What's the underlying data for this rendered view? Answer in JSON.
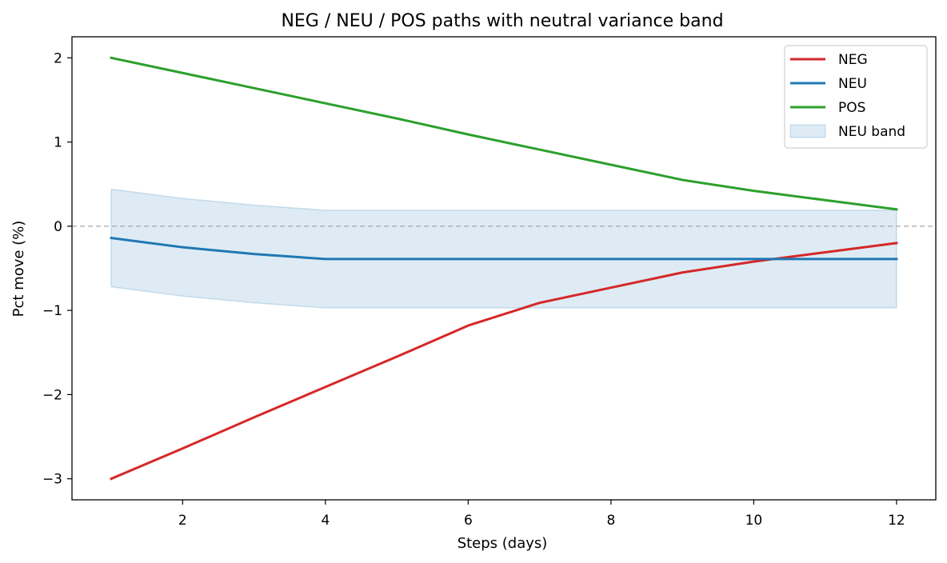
{
  "chart_data": {
    "type": "line",
    "title": "NEG / NEU / POS paths with neutral variance band",
    "xlabel": "Steps (days)",
    "ylabel": "Pct move (%)",
    "xlim": [
      0.45,
      12.55
    ],
    "ylim": [
      -3.25,
      2.25
    ],
    "xticks": [
      2,
      4,
      6,
      8,
      10,
      12
    ],
    "yticks": [
      -3,
      -2,
      -1,
      0,
      1,
      2
    ],
    "ytick_labels": [
      "−3",
      "−2",
      "−1",
      "0",
      "1",
      "2"
    ],
    "x": [
      1,
      2,
      3,
      4,
      5,
      6,
      7,
      8,
      9,
      10,
      11,
      12
    ],
    "series": [
      {
        "name": "NEG",
        "color": "#d62728",
        "values": [
          -3.0,
          -2.64,
          -2.27,
          -1.91,
          -1.55,
          -1.18,
          -0.91,
          -0.73,
          -0.55,
          -0.42,
          -0.31,
          -0.2
        ]
      },
      {
        "name": "NEU",
        "color": "#1f77b4",
        "values": [
          -0.14,
          -0.25,
          -0.33,
          -0.39,
          -0.39,
          -0.39,
          -0.39,
          -0.39,
          -0.39,
          -0.39,
          -0.39,
          -0.39
        ]
      },
      {
        "name": "POS",
        "color": "#2ca02c",
        "values": [
          2.0,
          1.82,
          1.64,
          1.46,
          1.28,
          1.09,
          0.91,
          0.73,
          0.55,
          0.42,
          0.31,
          0.2
        ]
      }
    ],
    "band": {
      "name": "NEU band",
      "color": "#1f77b4",
      "upper": [
        0.44,
        0.33,
        0.25,
        0.19,
        0.19,
        0.19,
        0.19,
        0.19,
        0.19,
        0.19,
        0.19,
        0.19
      ],
      "lower": [
        -0.72,
        -0.83,
        -0.91,
        -0.97,
        -0.97,
        -0.97,
        -0.97,
        -0.97,
        -0.97,
        -0.97,
        -0.97,
        -0.97
      ]
    },
    "reference_line": {
      "y": 0,
      "style": "dashed",
      "color": "#aaaaaa"
    },
    "legend": {
      "position": "upper right",
      "entries": [
        "NEG",
        "NEU",
        "POS",
        "NEU band"
      ]
    },
    "grid": false
  }
}
